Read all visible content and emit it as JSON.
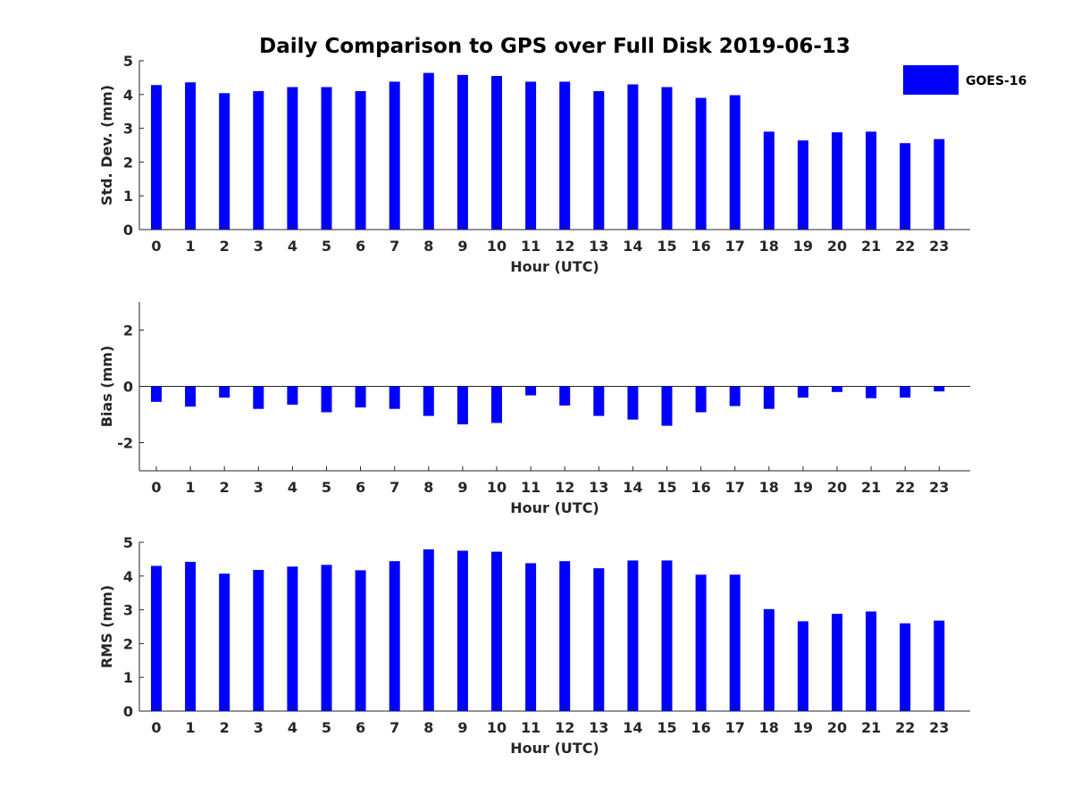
{
  "title": "Daily Comparison to GPS over Full Disk 2019-06-13",
  "colors": {
    "bar": "#0000ff",
    "axis": "#262626"
  },
  "legend": {
    "label": "GOES-16",
    "placement": "top-right"
  },
  "chart_data": [
    {
      "type": "bar",
      "xlabel": "Hour (UTC)",
      "ylabel": "Std. Dev. (mm)",
      "ylim": [
        0,
        5
      ],
      "yticks": [
        0,
        1,
        2,
        3,
        4,
        5
      ],
      "categories": [
        "0",
        "1",
        "2",
        "3",
        "4",
        "5",
        "6",
        "7",
        "8",
        "9",
        "10",
        "11",
        "12",
        "13",
        "14",
        "15",
        "16",
        "17",
        "18",
        "19",
        "20",
        "21",
        "22",
        "23"
      ],
      "series": [
        {
          "name": "GOES-16",
          "values": [
            4.28,
            4.36,
            4.04,
            4.1,
            4.22,
            4.22,
            4.1,
            4.38,
            4.64,
            4.58,
            4.55,
            4.38,
            4.38,
            4.1,
            4.3,
            4.22,
            3.9,
            3.98,
            2.9,
            2.64,
            2.88,
            2.9,
            2.56,
            2.68
          ]
        }
      ]
    },
    {
      "type": "bar",
      "xlabel": "Hour (UTC)",
      "ylabel": "Bias (mm)",
      "ylim": [
        -3,
        3
      ],
      "yticks": [
        -2,
        0,
        2
      ],
      "categories": [
        "0",
        "1",
        "2",
        "3",
        "4",
        "5",
        "6",
        "7",
        "8",
        "9",
        "10",
        "11",
        "12",
        "13",
        "14",
        "15",
        "16",
        "17",
        "18",
        "19",
        "20",
        "21",
        "22",
        "23"
      ],
      "series": [
        {
          "name": "GOES-16",
          "values": [
            -0.55,
            -0.72,
            -0.4,
            -0.8,
            -0.65,
            -0.92,
            -0.75,
            -0.8,
            -1.05,
            -1.35,
            -1.3,
            -0.32,
            -0.68,
            -1.05,
            -1.18,
            -1.4,
            -0.92,
            -0.7,
            -0.8,
            -0.4,
            -0.2,
            -0.42,
            -0.4,
            -0.18
          ]
        }
      ]
    },
    {
      "type": "bar",
      "xlabel": "Hour (UTC)",
      "ylabel": "RMS (mm)",
      "ylim": [
        0,
        5
      ],
      "yticks": [
        0,
        1,
        2,
        3,
        4,
        5
      ],
      "categories": [
        "0",
        "1",
        "2",
        "3",
        "4",
        "5",
        "6",
        "7",
        "8",
        "9",
        "10",
        "11",
        "12",
        "13",
        "14",
        "15",
        "16",
        "17",
        "18",
        "19",
        "20",
        "21",
        "22",
        "23"
      ],
      "series": [
        {
          "name": "GOES-16",
          "values": [
            4.3,
            4.42,
            4.07,
            4.18,
            4.28,
            4.33,
            4.17,
            4.44,
            4.79,
            4.75,
            4.72,
            4.38,
            4.44,
            4.23,
            4.46,
            4.46,
            4.04,
            4.04,
            3.02,
            2.66,
            2.88,
            2.95,
            2.6,
            2.68
          ]
        }
      ]
    }
  ]
}
